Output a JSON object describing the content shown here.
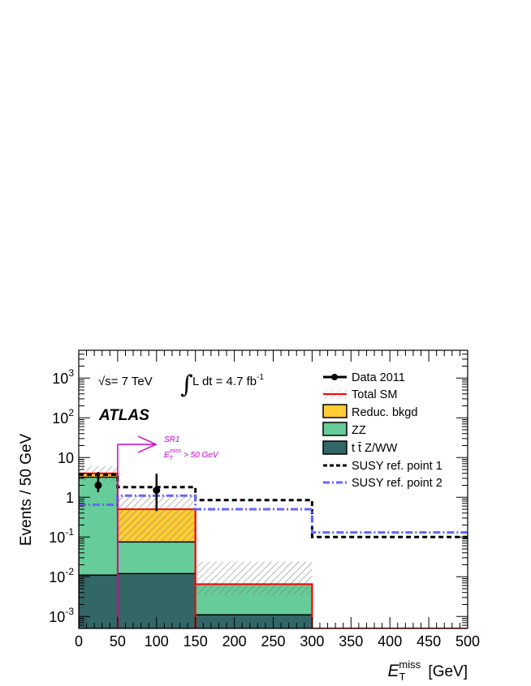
{
  "chart_data": {
    "type": "bar",
    "stacked": true,
    "y_scale": "log",
    "xlabel_main": "E",
    "xlabel_sup": "miss",
    "xlabel_sub": "T",
    "xlabel_unit": "[GeV]",
    "ylabel": "Events / 50 GeV",
    "xlim": [
      0,
      500
    ],
    "ylim": [
      0.0005,
      5000
    ],
    "x_ticks": [
      "0",
      "50",
      "100",
      "150",
      "200",
      "250",
      "300",
      "350",
      "400",
      "450",
      "500"
    ],
    "y_ticks": [
      {
        "value": 0.001,
        "base": "10",
        "exp": "-3"
      },
      {
        "value": 0.01,
        "base": "10",
        "exp": "-2"
      },
      {
        "value": 0.1,
        "base": "10",
        "exp": "-1"
      },
      {
        "value": 1,
        "base": "1",
        "exp": ""
      },
      {
        "value": 10,
        "base": "10",
        "exp": ""
      },
      {
        "value": 100,
        "base": "10",
        "exp": "2"
      },
      {
        "value": 1000,
        "base": "10",
        "exp": "3"
      }
    ],
    "bin_edges": [
      0,
      50,
      150,
      300,
      500
    ],
    "stack": [
      {
        "name": "t t̄ Z/WW",
        "color": "#336666",
        "values": [
          0.011,
          0.012,
          0.0011,
          0.0005
        ]
      },
      {
        "name": "ZZ",
        "color": "#66cc99",
        "values": [
          3.2,
          0.075,
          0.0065,
          0.0005
        ]
      },
      {
        "name": "Reduc. bkgd",
        "color": "#ffcc33",
        "values": [
          4.0,
          0.5,
          0.0065,
          0.0005
        ]
      }
    ],
    "total_sm": {
      "name": "Total SM",
      "color": "#ff0000",
      "values": [
        4.0,
        0.5,
        0.0065,
        0.0005
      ],
      "unc_up": [
        6.0,
        1.1,
        0.024,
        0.0005
      ],
      "unc_down": [
        2.6,
        0.08,
        0.0035,
        0.0005
      ]
    },
    "data": {
      "name": "Data 2011",
      "points": [
        {
          "x": 25,
          "y": 2,
          "err_low": 1.35,
          "err_high": 4.3
        },
        {
          "x": 100,
          "y": 1.5,
          "err_low": 0.45,
          "err_high": 3.9
        }
      ]
    },
    "susy1": {
      "name": "SUSY ref. point 1",
      "color": "#000000",
      "values": [
        3.7,
        1.8,
        0.85,
        0.1
      ]
    },
    "susy2": {
      "name": "SUSY ref. point 2",
      "color": "#6666ff",
      "values": [
        0.65,
        1.1,
        0.5,
        0.13
      ]
    },
    "cut": {
      "x": 50,
      "color": "#cc00cc",
      "label1": "SR1",
      "label2_main": "E",
      "label2_sup": "miss",
      "label2_sub": "T",
      "label2_rest": " > 50 GeV"
    },
    "legend_position": "top-right"
  },
  "annotations": {
    "sqrt_s": "√s= 7 TeV",
    "lumi_integral": "∫",
    "lumi_text": "L dt = 4.7 fb",
    "lumi_exp": "-1",
    "atlas": "ATLAS"
  },
  "legend": {
    "data": "Data 2011",
    "total_sm": "Total SM",
    "reduc": "Reduc. bkgd",
    "zz": "ZZ",
    "ttz": "t t̄ Z/WW",
    "susy1": "SUSY ref. point 1",
    "susy2": "SUSY ref. point 2"
  }
}
